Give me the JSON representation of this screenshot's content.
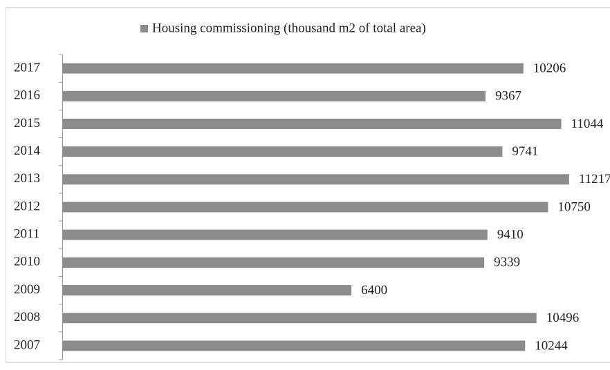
{
  "chart_data": {
    "type": "bar",
    "orientation": "horizontal",
    "legend_label": "Housing commissioning (thousand m2 of total area)",
    "categories": [
      "2007",
      "2008",
      "2009",
      "2010",
      "2011",
      "2012",
      "2013",
      "2014",
      "2015",
      "2016",
      "2017"
    ],
    "series": [
      {
        "name": "Housing commissioning (thousand m2 of total area)",
        "color": "#8c8c8c",
        "values": [
          10244,
          10496,
          6400,
          9339,
          9410,
          10750,
          11217,
          9741,
          11044,
          9367,
          10206
        ]
      }
    ],
    "xlim": [
      0,
      12000
    ],
    "legend": "top"
  }
}
